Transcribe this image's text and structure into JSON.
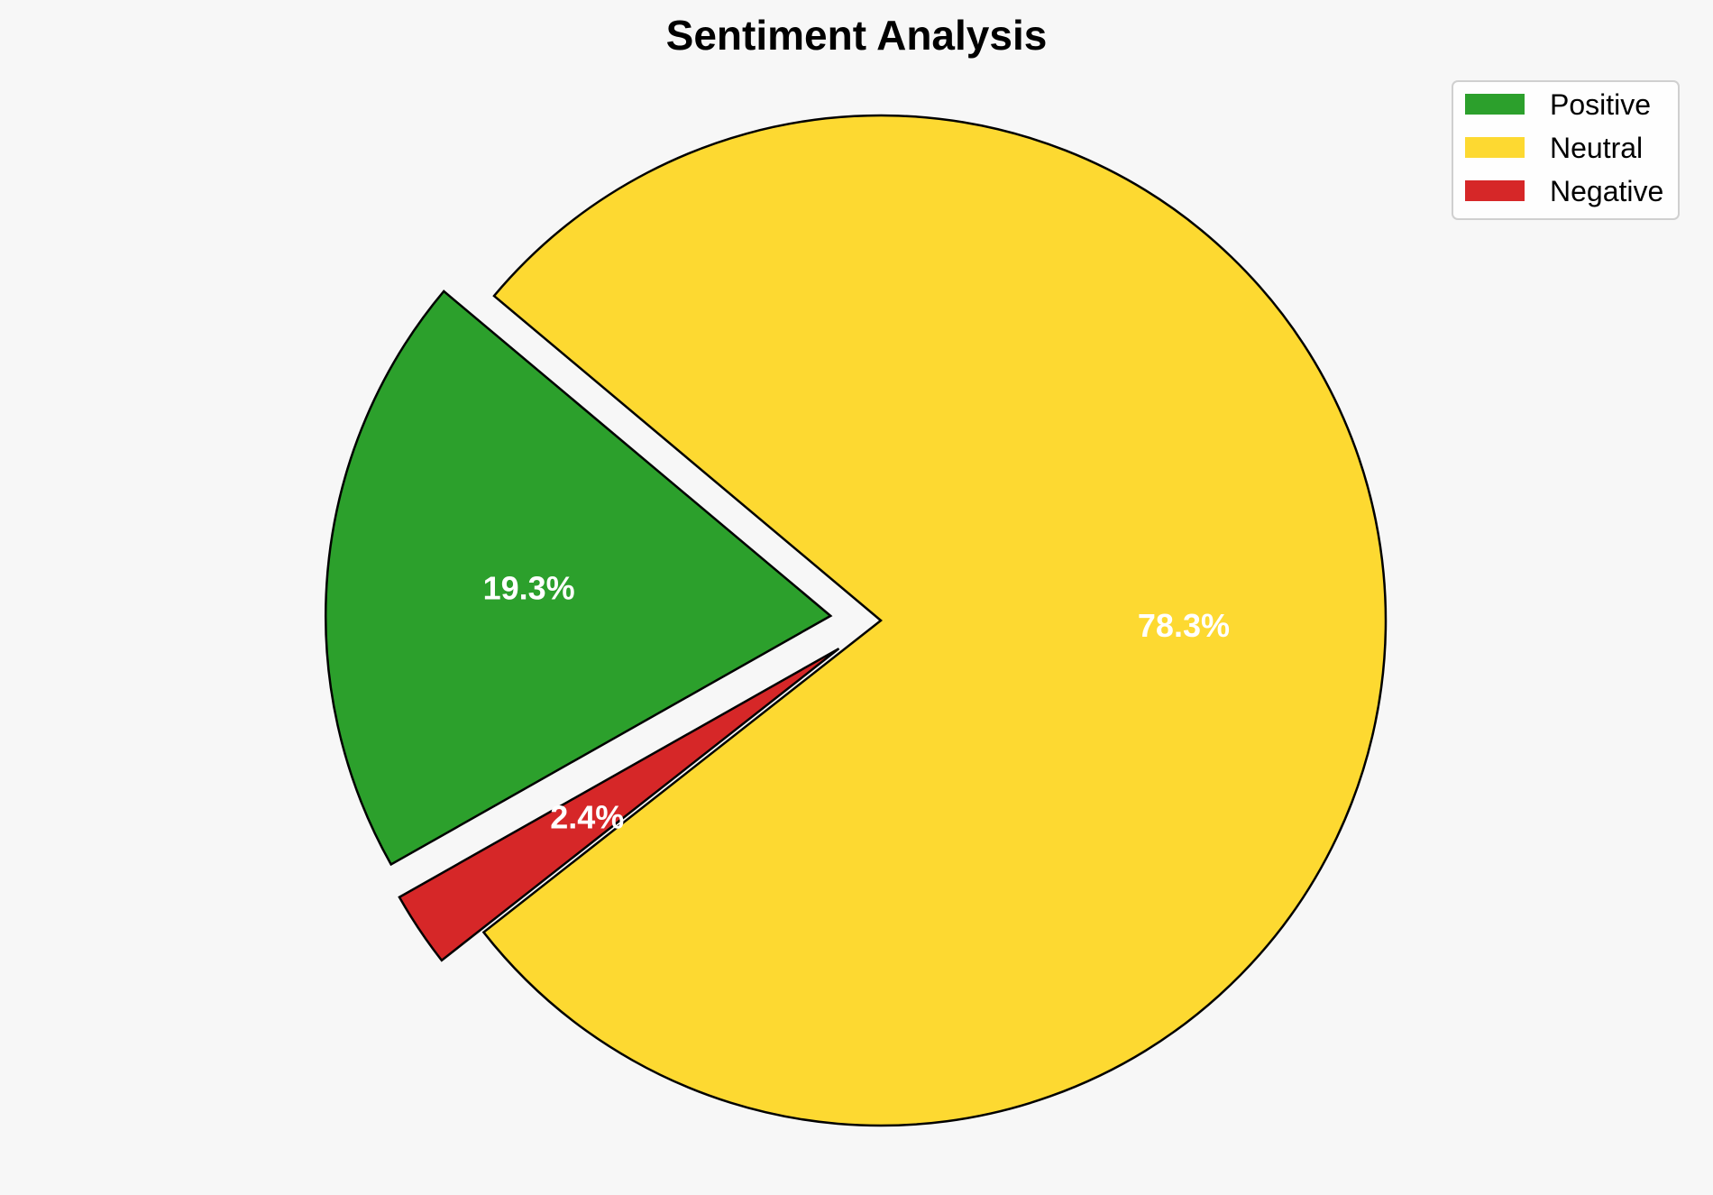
{
  "chart_data": {
    "type": "pie",
    "title": "Sentiment Analysis",
    "slices": [
      {
        "label": "Positive",
        "value": 19.3,
        "display": "19.3%",
        "color": "#2ca02c",
        "exploded": true
      },
      {
        "label": "Negative",
        "value": 2.4,
        "display": "2.4%",
        "color": "#d62728",
        "exploded": true
      },
      {
        "label": "Neutral",
        "value": 78.3,
        "display": "78.3%",
        "color": "#fdd931",
        "exploded": false
      }
    ],
    "legend": {
      "placement": "top-right",
      "entries": [
        {
          "label": "Positive",
          "color": "#2ca02c"
        },
        {
          "label": "Neutral",
          "color": "#fdd931"
        },
        {
          "label": "Negative",
          "color": "#d62728"
        }
      ]
    },
    "label_color": "#ffffff",
    "edge_color": "#000000"
  }
}
